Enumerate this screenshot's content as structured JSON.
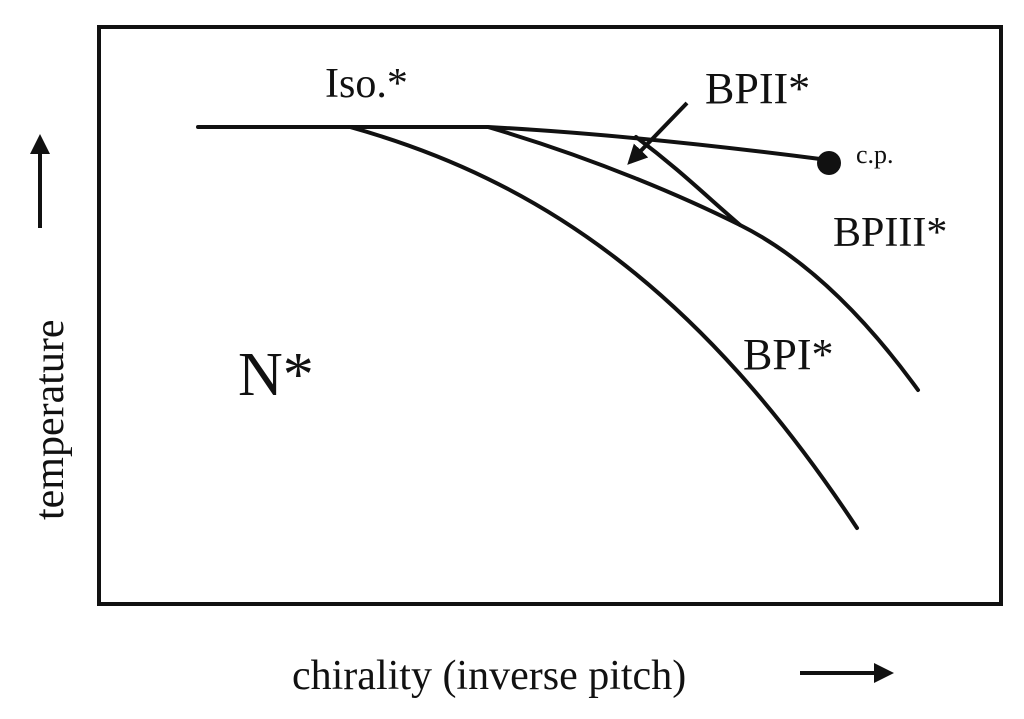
{
  "axes": {
    "x_label": "chirality (inverse pitch)",
    "y_label": "temperature"
  },
  "phases": {
    "isotropic": "Iso.*",
    "cholesteric": "N*",
    "bp1": "BPI*",
    "bp2": "BPII*",
    "bp3": "BPIII*"
  },
  "critical_point": {
    "label": "c.p."
  }
}
